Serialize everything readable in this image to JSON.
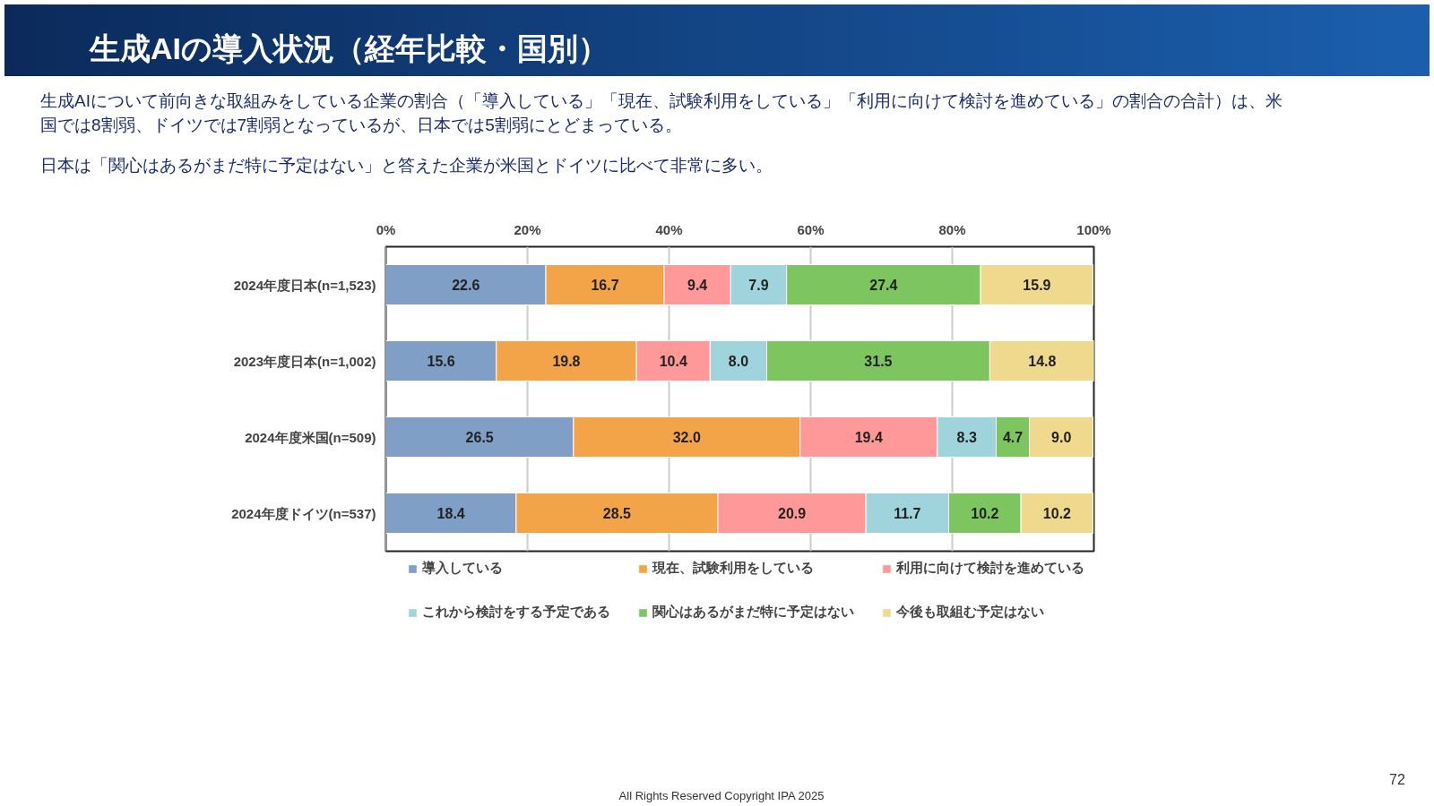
{
  "chart_data": {
    "type": "bar",
    "orientation": "horizontal",
    "stacked": true,
    "title": "生成AIの導入状況（経年比較・国別）",
    "annotations": [
      "生成AIについて前向きな取組みをしている企業の割合（「導入している」「現在、試験利用をしている」「利用に向けて検討を進めている」の割合の合計）は、米国では8割弱、ドイツでは7割弱となっているが、日本では5割弱にとどまっている。",
      "日本は「関心はあるがまだ特に予定はない」と答えた企業が米国とドイツに比べて非常に多い。",
      "All Rights Reserved Copyright IPA 2025",
      "72"
    ],
    "categories": [
      "2024年度日本(n=1,523)",
      "2023年度日本(n=1,002)",
      "2024年度米国(n=509)",
      "2024年度ドイツ(n=537)"
    ],
    "series": [
      {
        "name": "導入している",
        "color": "#7f9fc6",
        "values": [
          22.6,
          15.6,
          26.5,
          18.4
        ],
        "value_labels": [
          "22.6",
          "15.6",
          "26.5",
          "18.4"
        ]
      },
      {
        "name": "現在、試験利用をしている",
        "color": "#f4a448",
        "values": [
          16.7,
          19.8,
          32.0,
          28.5
        ],
        "value_labels": [
          "16.7",
          "19.8",
          "32.0",
          "28.5"
        ]
      },
      {
        "name": "利用に向けて検討を進めている",
        "color": "#ff9999",
        "values": [
          9.4,
          10.4,
          19.4,
          20.9
        ],
        "value_labels": [
          "9.4",
          "10.4",
          "19.4",
          "20.9"
        ]
      },
      {
        "name": "これから検討をする予定である",
        "color": "#9fd4dc",
        "values": [
          7.9,
          8.0,
          8.3,
          11.7
        ],
        "value_labels": [
          "7.9",
          "8.0",
          "8.3",
          "11.7"
        ]
      },
      {
        "name": "関心はあるがまだ特に予定はない",
        "color": "#7dc65f",
        "values": [
          27.4,
          31.5,
          4.7,
          10.2
        ],
        "value_labels": [
          "27.4",
          "31.5",
          "4.7",
          "10.2"
        ]
      },
      {
        "name": "今後も取組む予定はない",
        "color": "#efd98d",
        "values": [
          15.9,
          14.8,
          9.0,
          10.2
        ],
        "value_labels": [
          "15.9",
          "14.8",
          "9.0",
          "10.2"
        ]
      }
    ],
    "xlim": [
      0,
      100
    ],
    "xticks": [
      {
        "value": 0,
        "label": "0%"
      },
      {
        "value": 20,
        "label": "20%"
      },
      {
        "value": 40,
        "label": "40%"
      },
      {
        "value": 60,
        "label": "60%"
      },
      {
        "value": 80,
        "label": "80%"
      },
      {
        "value": 100,
        "label": "100%"
      }
    ],
    "grid": "x",
    "legend": "bottom"
  }
}
